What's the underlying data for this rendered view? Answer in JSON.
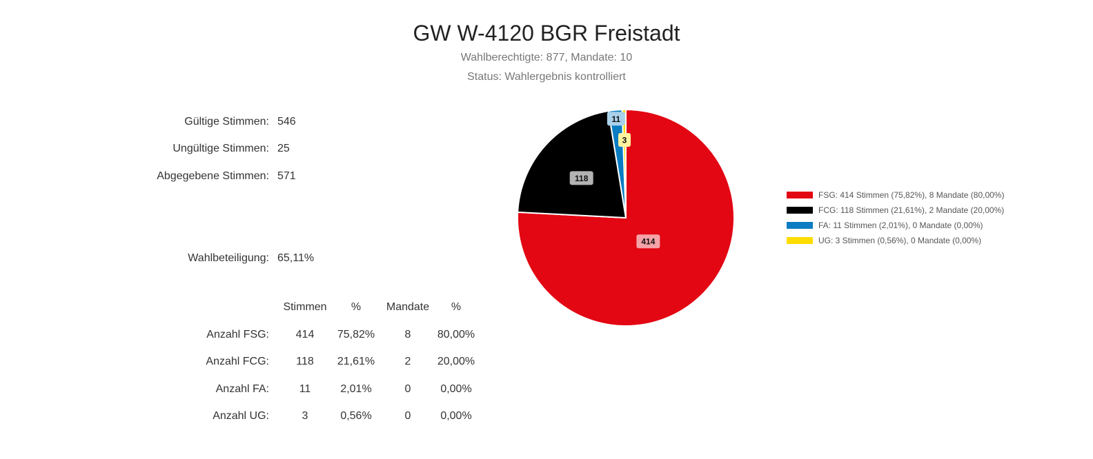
{
  "header": {
    "title": "GW W-4120 BGR Freistadt",
    "subtitle1": "Wahlberechtigte: 877, Mandate: 10",
    "subtitle2": "Status: Wahlergebnis kontrolliert"
  },
  "stats": [
    {
      "label": "Gültige Stimmen:",
      "value": "546"
    },
    {
      "label": "Ungültige Stimmen:",
      "value": "25"
    },
    {
      "label": "Abgegebene Stimmen:",
      "value": "571"
    },
    {
      "label": "Wahlbeteiligung:",
      "value": "65,11%"
    }
  ],
  "table": {
    "headers": [
      "Stimmen",
      "%",
      "Mandate",
      "%"
    ],
    "rows": [
      {
        "label": "Anzahl FSG:",
        "stimmen": "414",
        "pct": "75,82%",
        "mandate": "8",
        "mpct": "80,00%"
      },
      {
        "label": "Anzahl FCG:",
        "stimmen": "118",
        "pct": "21,61%",
        "mandate": "2",
        "mpct": "20,00%"
      },
      {
        "label": "Anzahl FA:",
        "stimmen": "11",
        "pct": "2,01%",
        "mandate": "0",
        "mpct": "0,00%"
      },
      {
        "label": "Anzahl UG:",
        "stimmen": "3",
        "pct": "0,56%",
        "mandate": "0",
        "mpct": "0,00%"
      }
    ]
  },
  "chart_data": {
    "type": "pie",
    "start_angle_deg": 0,
    "legend_position": "right",
    "slices": [
      {
        "name": "FSG",
        "value": 414,
        "label": "414",
        "color": "#e30613",
        "label_bg": "#f5a3a8",
        "legend": "FSG: 414 Stimmen (75,82%), 8 Mandate (80,00%)"
      },
      {
        "name": "FCG",
        "value": 118,
        "label": "118",
        "color": "#000000",
        "label_bg": "#b3b3b3",
        "legend": "FCG: 118 Stimmen (21,61%), 2 Mandate (20,00%)"
      },
      {
        "name": "FA",
        "value": 11,
        "label": "11",
        "color": "#0a7cc1",
        "label_bg": "#a9d1ea",
        "legend": "FA: 11 Stimmen (2,01%), 0 Mandate (0,00%)"
      },
      {
        "name": "UG",
        "value": 3,
        "label": "3",
        "color": "#ffdd00",
        "label_bg": "#fff3a0",
        "legend": "UG: 3 Stimmen (0,56%), 0 Mandate (0,00%)"
      }
    ]
  }
}
